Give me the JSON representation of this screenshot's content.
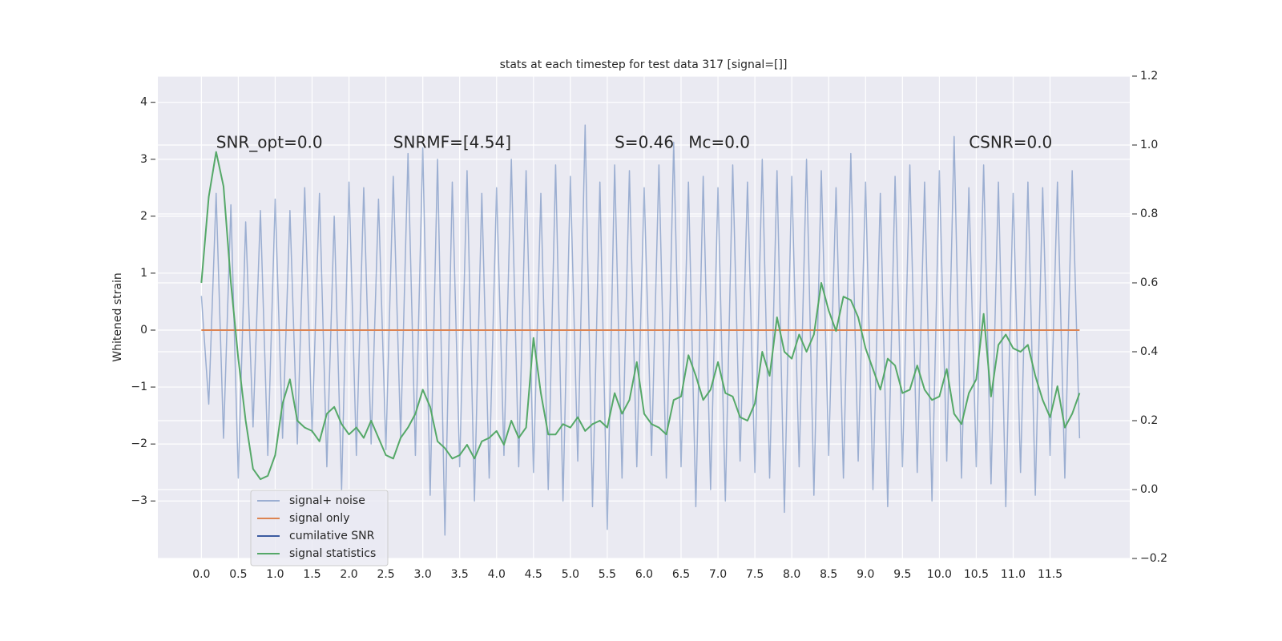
{
  "chart_data": {
    "type": "line",
    "title": "stats at each timestep for test data 317 [signal=[]]",
    "ylabel": "Whitened strain",
    "x": [
      0.0,
      0.1,
      0.2,
      0.3,
      0.4,
      0.5,
      0.6,
      0.7,
      0.8,
      0.9,
      1.0,
      1.1,
      1.2,
      1.3,
      1.4,
      1.5,
      1.6,
      1.7,
      1.8,
      1.9,
      2.0,
      2.1,
      2.2,
      2.3,
      2.4,
      2.5,
      2.6,
      2.7,
      2.8,
      2.9,
      3.0,
      3.1,
      3.2,
      3.3,
      3.4,
      3.5,
      3.6,
      3.7,
      3.8,
      3.9,
      4.0,
      4.1,
      4.2,
      4.3,
      4.4,
      4.5,
      4.6,
      4.7,
      4.8,
      4.9,
      5.0,
      5.1,
      5.2,
      5.3,
      5.4,
      5.5,
      5.6,
      5.7,
      5.8,
      5.9,
      6.0,
      6.1,
      6.2,
      6.3,
      6.4,
      6.5,
      6.6,
      6.7,
      6.8,
      6.9,
      7.0,
      7.1,
      7.2,
      7.3,
      7.4,
      7.5,
      7.6,
      7.7,
      7.8,
      7.9,
      8.0,
      8.1,
      8.2,
      8.3,
      8.4,
      8.5,
      8.6,
      8.7,
      8.8,
      8.9,
      9.0,
      9.1,
      9.2,
      9.3,
      9.4,
      9.5,
      9.6,
      9.7,
      9.8,
      9.9,
      10.0,
      10.1,
      10.2,
      10.3,
      10.4,
      10.5,
      10.6,
      10.7,
      10.8,
      10.9,
      11.0,
      11.1,
      11.2,
      11.3,
      11.4,
      11.5,
      11.6,
      11.7,
      11.8,
      11.9
    ],
    "series": [
      {
        "name": "signal+ noise",
        "color": "#4c72b0",
        "opacity": 0.5,
        "values": [
          0.6,
          -1.3,
          2.4,
          -1.9,
          2.2,
          -2.6,
          1.9,
          -1.7,
          2.1,
          -2.2,
          2.3,
          -1.9,
          2.1,
          -2.0,
          2.5,
          -1.8,
          2.4,
          -2.4,
          2.0,
          -2.8,
          2.6,
          -2.2,
          2.5,
          -2.0,
          2.3,
          -2.1,
          2.7,
          -1.9,
          3.1,
          -2.2,
          3.2,
          -2.9,
          3.0,
          -3.6,
          2.6,
          -2.4,
          2.8,
          -3.0,
          2.4,
          -2.6,
          2.5,
          -2.2,
          3.0,
          -2.4,
          2.8,
          -2.5,
          2.4,
          -2.8,
          2.9,
          -3.0,
          2.7,
          -2.3,
          3.6,
          -3.1,
          2.6,
          -3.5,
          2.9,
          -2.6,
          2.8,
          -2.4,
          2.5,
          -2.2,
          2.9,
          -2.6,
          3.3,
          -2.4,
          2.6,
          -3.1,
          2.7,
          -2.8,
          2.5,
          -3.0,
          2.9,
          -2.3,
          2.6,
          -2.5,
          3.0,
          -2.6,
          2.8,
          -3.2,
          2.7,
          -2.4,
          3.0,
          -2.9,
          2.8,
          -2.2,
          2.5,
          -2.6,
          3.1,
          -2.3,
          2.6,
          -2.8,
          2.4,
          -3.1,
          2.7,
          -2.4,
          2.9,
          -2.5,
          2.6,
          -3.0,
          2.8,
          -2.3,
          3.4,
          -2.6,
          2.5,
          -2.4,
          2.9,
          -2.7,
          2.6,
          -3.1,
          2.4,
          -2.5,
          2.6,
          -2.9,
          2.5,
          -2.2,
          2.6,
          -2.6,
          2.8,
          -1.9
        ]
      },
      {
        "name": "signal only",
        "color": "#dd8452",
        "opacity": 1,
        "values": [
          0,
          0,
          0,
          0,
          0,
          0,
          0,
          0,
          0,
          0,
          0,
          0,
          0,
          0,
          0,
          0,
          0,
          0,
          0,
          0,
          0,
          0,
          0,
          0,
          0,
          0,
          0,
          0,
          0,
          0,
          0,
          0,
          0,
          0,
          0,
          0,
          0,
          0,
          0,
          0,
          0,
          0,
          0,
          0,
          0,
          0,
          0,
          0,
          0,
          0,
          0,
          0,
          0,
          0,
          0,
          0,
          0,
          0,
          0,
          0,
          0,
          0,
          0,
          0,
          0,
          0,
          0,
          0,
          0,
          0,
          0,
          0,
          0,
          0,
          0,
          0,
          0,
          0,
          0,
          0,
          0,
          0,
          0,
          0,
          0,
          0,
          0,
          0,
          0,
          0,
          0,
          0,
          0,
          0,
          0,
          0,
          0,
          0,
          0,
          0,
          0,
          0,
          0,
          0,
          0,
          0,
          0,
          0,
          0,
          0,
          0,
          0,
          0,
          0,
          0,
          0,
          0,
          0,
          0,
          0
        ]
      },
      {
        "name": "cumilative SNR",
        "color": "#3b5ba0",
        "opacity": 1,
        "values": [
          null,
          null,
          null,
          null,
          null,
          null,
          null,
          null,
          null,
          null,
          null,
          null,
          null,
          null,
          null,
          null,
          null,
          null,
          null,
          null,
          null,
          null,
          null,
          null,
          null,
          null,
          null,
          null,
          null,
          null,
          null,
          null,
          null,
          null,
          null,
          null,
          null,
          null,
          null,
          null,
          null,
          null,
          null,
          null,
          null,
          null,
          null,
          null,
          null,
          null,
          null,
          null,
          null,
          null,
          null,
          null,
          null,
          null,
          null,
          null,
          null,
          null,
          null,
          null,
          null,
          null,
          null,
          null,
          null,
          null,
          null,
          null,
          null,
          null,
          null,
          null,
          null,
          null,
          null,
          null,
          null,
          null,
          null,
          null,
          null,
          null,
          null,
          null,
          null,
          null,
          null,
          null,
          null,
          null,
          null,
          null,
          null,
          null,
          null,
          null,
          null,
          null,
          null,
          null,
          null,
          null,
          null,
          null,
          null,
          null,
          null,
          null,
          null,
          null,
          null,
          null,
          null,
          null,
          null,
          null
        ]
      },
      {
        "name": "signal statistics",
        "color": "#55a868",
        "opacity": 1,
        "axis": "y2",
        "values": [
          0.6,
          0.85,
          0.98,
          0.88,
          0.6,
          0.38,
          0.2,
          0.06,
          0.03,
          0.04,
          0.1,
          0.25,
          0.32,
          0.2,
          0.18,
          0.17,
          0.14,
          0.22,
          0.24,
          0.19,
          0.16,
          0.18,
          0.15,
          0.2,
          0.15,
          0.1,
          0.09,
          0.15,
          0.18,
          0.22,
          0.29,
          0.24,
          0.14,
          0.12,
          0.09,
          0.1,
          0.13,
          0.09,
          0.14,
          0.15,
          0.17,
          0.13,
          0.2,
          0.15,
          0.18,
          0.44,
          0.28,
          0.16,
          0.16,
          0.19,
          0.18,
          0.21,
          0.17,
          0.19,
          0.2,
          0.18,
          0.28,
          0.22,
          0.26,
          0.37,
          0.22,
          0.19,
          0.18,
          0.16,
          0.26,
          0.27,
          0.39,
          0.33,
          0.26,
          0.29,
          0.37,
          0.28,
          0.27,
          0.21,
          0.2,
          0.25,
          0.4,
          0.33,
          0.5,
          0.4,
          0.38,
          0.45,
          0.4,
          0.45,
          0.6,
          0.52,
          0.46,
          0.56,
          0.55,
          0.5,
          0.41,
          0.35,
          0.29,
          0.38,
          0.36,
          0.28,
          0.29,
          0.36,
          0.29,
          0.26,
          0.27,
          0.35,
          0.22,
          0.19,
          0.28,
          0.32,
          0.51,
          0.27,
          0.42,
          0.45,
          0.41,
          0.4,
          0.42,
          0.33,
          0.26,
          0.21,
          0.3,
          0.18,
          0.22,
          0.28
        ]
      }
    ],
    "annotations": [
      {
        "text": "SNR_opt=0.0",
        "x": 0.2,
        "y": 3.2
      },
      {
        "text": "SNRMF=[4.54]",
        "x": 2.6,
        "y": 3.2
      },
      {
        "text": "S=0.46",
        "x": 5.6,
        "y": 3.2
      },
      {
        "text": "Mc=0.0",
        "x": 6.6,
        "y": 3.2
      },
      {
        "text": "CSNR=0.0",
        "x": 10.4,
        "y": 3.2
      }
    ],
    "xlim": [
      -0.59,
      12.58
    ],
    "ylim": [
      -4.01,
      4.46
    ],
    "y2lim": [
      -0.2,
      1.2
    ],
    "xticks": [
      {
        "value": 0,
        "label": "0.0"
      },
      0.5,
      {
        "value": 1,
        "label": "1.0"
      },
      1.5,
      {
        "value": 2,
        "label": "2.0"
      },
      2.5,
      {
        "value": 3,
        "label": "3.0"
      },
      3.5,
      {
        "value": 4,
        "label": "4.0"
      },
      4.5,
      {
        "value": 5,
        "label": "5.0"
      },
      5.5,
      {
        "value": 6,
        "label": "6.0"
      },
      6.5,
      {
        "value": 7,
        "label": "7.0"
      },
      7.5,
      {
        "value": 8,
        "label": "8.0"
      },
      8.5,
      {
        "value": 9,
        "label": "9.0"
      },
      9.5,
      {
        "value": 10,
        "label": "10.0"
      },
      10.5,
      {
        "value": 11,
        "label": "11.0"
      },
      11.5
    ],
    "yticks": [
      {
        "value": -3,
        "label": "−3"
      },
      {
        "value": -2,
        "label": "−2"
      },
      {
        "value": -1,
        "label": "−1"
      },
      0,
      1,
      2,
      3,
      4
    ],
    "y2ticks": [
      {
        "value": -0.2,
        "label": "−0.2"
      },
      {
        "value": 0,
        "label": "0.0"
      },
      0.2,
      0.4,
      0.6,
      0.8,
      {
        "value": 1,
        "label": "1.0"
      },
      1.2
    ],
    "grid": true,
    "legend": "lower left"
  }
}
